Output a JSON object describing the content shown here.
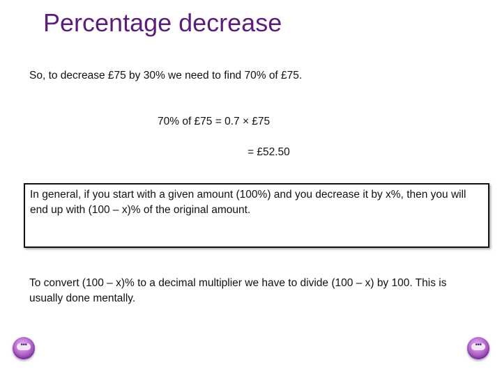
{
  "slide": {
    "title": "Percentage decrease",
    "intro": "So, to decrease £75 by 30% we need to find 70% of £75.",
    "calc_line1": "70% of £75 = 0.7 × £75",
    "calc_line2": "= £52.50",
    "box_text": "In general, if you start with a given amount (100%) and you decrease it by x%, then you will end up with (100 – x)% of the original amount.",
    "paragraph": "To convert (100 – x)% to a decimal multiplier we have to divide (100 – x) by 100. This is usually done mentally."
  },
  "navigation": {
    "prev_icon": "ellipsis-button-icon",
    "next_icon": "ellipsis-button-icon",
    "prev_label": "•••",
    "next_label": "•••"
  },
  "colors": {
    "title": "#5b1e7a",
    "button": "#9a48b8"
  }
}
